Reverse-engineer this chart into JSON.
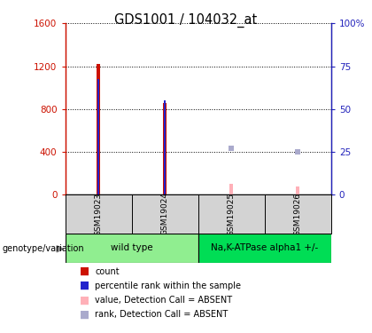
{
  "title": "GDS1001 / 104032_at",
  "samples": [
    "GSM19023",
    "GSM19024",
    "GSM19025",
    "GSM19026"
  ],
  "count_values": [
    1220,
    860,
    0,
    0
  ],
  "rank_values": [
    1080,
    880,
    0,
    0
  ],
  "absent_value_values": [
    0,
    0,
    100,
    75
  ],
  "absent_rank_values": [
    0,
    0,
    430,
    400
  ],
  "ylim_left": [
    0,
    1600
  ],
  "ylim_right": [
    0,
    100
  ],
  "yticks_left": [
    0,
    400,
    800,
    1200,
    1600
  ],
  "yticks_right": [
    0,
    25,
    50,
    75,
    100
  ],
  "ytick_labels_left": [
    "0",
    "400",
    "800",
    "1200",
    "1600"
  ],
  "ytick_labels_right": [
    "0",
    "25",
    "50",
    "75",
    "100%"
  ],
  "groups": [
    {
      "label": "wild type",
      "samples": [
        0,
        1
      ],
      "color": "#90EE90"
    },
    {
      "label": "Na,K-ATPase alpha1 +/-",
      "samples": [
        2,
        3
      ],
      "color": "#00DD55"
    }
  ],
  "color_count": "#CC1100",
  "color_rank": "#2222CC",
  "color_absent_value": "#FFB0B8",
  "color_absent_rank": "#AAAACC",
  "legend_items": [
    {
      "color": "#CC1100",
      "label": "count"
    },
    {
      "color": "#2222CC",
      "label": "percentile rank within the sample"
    },
    {
      "color": "#FFB0B8",
      "label": "value, Detection Call = ABSENT"
    },
    {
      "color": "#AAAACC",
      "label": "rank, Detection Call = ABSENT"
    }
  ],
  "genotype_label": "genotype/variation",
  "left_axis_color": "#CC1100",
  "right_axis_color": "#2222BB",
  "label_area_color": "#D3D3D3"
}
